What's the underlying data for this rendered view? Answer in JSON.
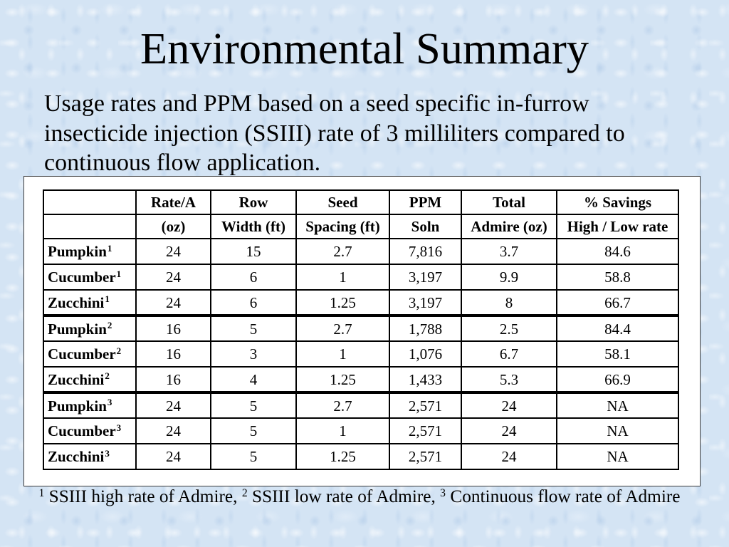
{
  "slide": {
    "title": "Environmental Summary",
    "intro": "Usage rates and PPM based on a seed specific in-furrow insecticide injection (SSIII) rate of 3 milliliters compared to continuous flow application."
  },
  "table": {
    "columns": [
      {
        "top": "Rate/A",
        "bottom": "(oz)"
      },
      {
        "top": "Row",
        "bottom": "Width (ft)"
      },
      {
        "top": "Seed",
        "bottom": "Spacing (ft)"
      },
      {
        "top": "PPM",
        "bottom": "Soln"
      },
      {
        "top": "Total",
        "bottom": "Admire (oz)"
      },
      {
        "top": "% Savings",
        "bottom": "High / Low rate"
      }
    ],
    "groups": [
      {
        "rows": [
          {
            "crop": "Pumpkin",
            "note": "1",
            "values": [
              "24",
              "15",
              "2.7",
              "7,816",
              "3.7",
              "84.6"
            ]
          },
          {
            "crop": "Cucumber",
            "note": "1",
            "values": [
              "24",
              "6",
              "1",
              "3,197",
              "9.9",
              "58.8"
            ]
          },
          {
            "crop": "Zucchini",
            "note": "1",
            "values": [
              "24",
              "6",
              "1.25",
              "3,197",
              "8",
              "66.7"
            ]
          }
        ]
      },
      {
        "rows": [
          {
            "crop": "Pumpkin",
            "note": "2",
            "values": [
              "16",
              "5",
              "2.7",
              "1,788",
              "2.5",
              "84.4"
            ]
          },
          {
            "crop": "Cucumber",
            "note": "2",
            "values": [
              "16",
              "3",
              "1",
              "1,076",
              "6.7",
              "58.1"
            ]
          },
          {
            "crop": "Zucchini",
            "note": "2",
            "values": [
              "16",
              "4",
              "1.25",
              "1,433",
              "5.3",
              "66.9"
            ]
          }
        ]
      },
      {
        "rows": [
          {
            "crop": "Pumpkin",
            "note": "3",
            "values": [
              "24",
              "5",
              "2.7",
              "2,571",
              "24",
              "NA"
            ]
          },
          {
            "crop": "Cucumber",
            "note": "3",
            "values": [
              "24",
              "5",
              "1",
              "2,571",
              "24",
              "NA"
            ]
          },
          {
            "crop": "Zucchini",
            "note": "3",
            "values": [
              "24",
              "5",
              "1.25",
              "2,571",
              "24",
              "NA"
            ]
          }
        ]
      }
    ]
  },
  "footnotes": [
    {
      "mark": "1",
      "text": "SSIII high rate of Admire,"
    },
    {
      "mark": "2",
      "text": "SSIII low rate of Admire,"
    },
    {
      "mark": "3",
      "text": "Continuous flow rate of Admire"
    }
  ],
  "colors": {
    "background": "#d4e4f4",
    "text": "#000000",
    "table_rules": "#000000",
    "table_panel": "#ffffff",
    "panel_border": "#3a3a3a"
  }
}
